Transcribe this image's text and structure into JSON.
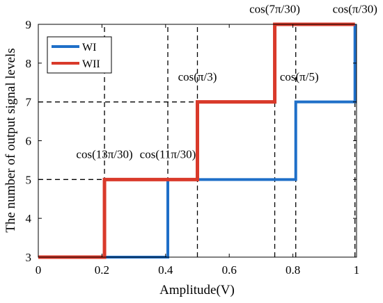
{
  "chart_data": {
    "type": "line",
    "xlabel": "Amplitude(V)",
    "ylabel": "The number of output signal levels",
    "xlim": [
      0,
      1
    ],
    "ylim": [
      3,
      9
    ],
    "xticks": [
      "0",
      "0.2",
      "0.4",
      "0.6",
      "0.8",
      "1"
    ],
    "yticks": [
      "3",
      "4",
      "5",
      "6",
      "7",
      "8",
      "9"
    ],
    "legend_position": "top-left",
    "series": [
      {
        "name": "WI",
        "color": "#1f6fc8",
        "step": true,
        "x": [
          0,
          0.407,
          0.407,
          0.5,
          0.5,
          0.809,
          0.809,
          0.995,
          0.995
        ],
        "y": [
          3,
          3,
          5,
          5,
          5,
          5,
          7,
          7,
          9
        ]
      },
      {
        "name": "WII",
        "color": "#d93a2b",
        "step": true,
        "x": [
          0,
          0.208,
          0.208,
          0.5,
          0.5,
          0.743,
          0.743,
          0.995,
          0.995
        ],
        "y": [
          3,
          3,
          5,
          5,
          7,
          7,
          9,
          9,
          9
        ]
      }
    ],
    "reference_lines": {
      "vertical_x": [
        0.208,
        0.407,
        0.5,
        0.743,
        0.809,
        0.995
      ],
      "horizontal": [
        {
          "y": 5,
          "x_from": 0,
          "x_to": 0.208
        },
        {
          "y": 7,
          "x_from": 0,
          "x_to": 0.5
        }
      ]
    },
    "annotations": [
      {
        "text": "cos(13π/30)",
        "x": 0.208,
        "y": 5.55,
        "anchor": "middle"
      },
      {
        "text": "cos(11π/30)",
        "x": 0.407,
        "y": 5.55,
        "anchor": "middle"
      },
      {
        "text": "cos(π/3)",
        "x": 0.5,
        "y": 7.55,
        "anchor": "middle"
      },
      {
        "text": "cos(7π/30)",
        "x": 0.743,
        "y": 9.3,
        "anchor": "middle"
      },
      {
        "text": "cos(π/30)",
        "x": 0.995,
        "y": 9.3,
        "anchor": "middle"
      },
      {
        "text": "cos(π/5)",
        "x": 0.82,
        "y": 7.55,
        "anchor": "middle"
      }
    ]
  }
}
